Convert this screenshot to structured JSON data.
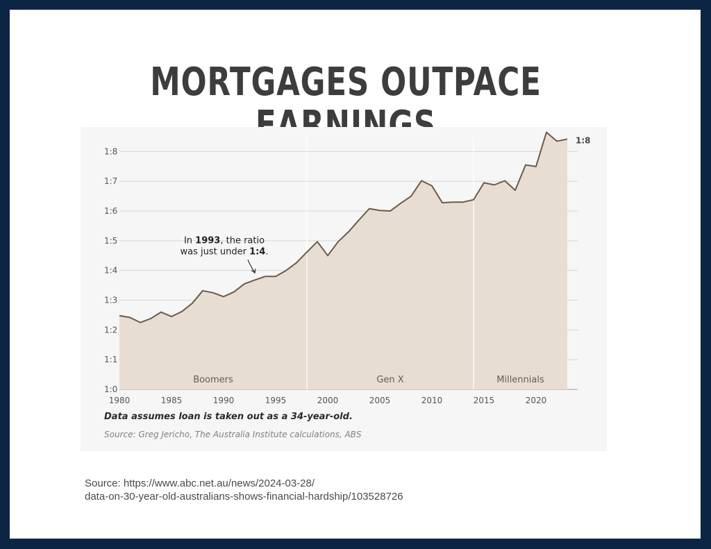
{
  "slide": {
    "title": "MORTGAGES OUTPACE EARNINGS",
    "source_line1": "Source: https://www.abc.net.au/news/2024-03-28/",
    "source_line2": "data-on-30-year-old-australians-shows-financial-hardship/103528726",
    "background_color": "#0d2544"
  },
  "chart_note": "Data assumes loan is taken out as a 34-year-old.",
  "chart_source": "Source: Greg Jericho, The Australia Institute calculations, ABS",
  "chart_data": {
    "type": "area",
    "title": "",
    "xlabel": "",
    "ylabel": "",
    "xlim": [
      1980,
      2024
    ],
    "ylim": [
      0,
      8.5
    ],
    "x_ticks": [
      1980,
      1985,
      1990,
      1995,
      2000,
      2005,
      2010,
      2015,
      2020
    ],
    "y_ticks": [
      {
        "value": 0,
        "label": "1:0"
      },
      {
        "value": 1,
        "label": "1:1"
      },
      {
        "value": 2,
        "label": "1:2"
      },
      {
        "value": 3,
        "label": "1:3"
      },
      {
        "value": 4,
        "label": "1:4"
      },
      {
        "value": 5,
        "label": "1:5"
      },
      {
        "value": 6,
        "label": "1:6"
      },
      {
        "value": 7,
        "label": "1:7"
      },
      {
        "value": 8,
        "label": "1:8"
      }
    ],
    "grid": true,
    "line_color": "#6b5a4a",
    "fill_color": "#e8ddd3",
    "series": [
      {
        "x": [
          1980,
          1981,
          1982,
          1983,
          1984,
          1985,
          1986,
          1987,
          1988,
          1989,
          1990,
          1991,
          1992,
          1993,
          1994,
          1995,
          1996,
          1997,
          1998,
          1999,
          2000,
          2001,
          2002,
          2003,
          2004,
          2005,
          2006,
          2007,
          2008,
          2009,
          2010,
          2011,
          2012,
          2013,
          2014,
          2015,
          2016,
          2017,
          2018,
          2019,
          2020,
          2021,
          2022,
          2023
        ],
        "values": [
          2.48,
          2.42,
          2.25,
          2.38,
          2.6,
          2.45,
          2.62,
          2.9,
          3.32,
          3.25,
          3.12,
          3.28,
          3.55,
          3.68,
          3.8,
          3.8,
          4.0,
          4.26,
          4.62,
          4.97,
          4.5,
          4.97,
          5.3,
          5.7,
          6.08,
          6.02,
          6.0,
          6.26,
          6.5,
          7.02,
          6.85,
          6.28,
          6.3,
          6.3,
          6.38,
          6.95,
          6.88,
          7.02,
          6.7,
          7.55,
          7.5,
          8.65,
          8.35,
          8.42
        ]
      }
    ],
    "end_label": "1:8",
    "eras": [
      {
        "label": "Boomers",
        "start": 1980,
        "end": 1998
      },
      {
        "label": "Gen X",
        "start": 1998,
        "end": 2014
      },
      {
        "label": "Millennials",
        "start": 2014,
        "end": 2024
      }
    ],
    "annotation": {
      "line1_prefix": "In ",
      "line1_bold": "1993",
      "line1_suffix": ", the ratio",
      "line2_prefix": "was just under ",
      "line2_bold": "1:4",
      "line2_suffix": ".",
      "x": 1993,
      "y": 3.8
    }
  }
}
